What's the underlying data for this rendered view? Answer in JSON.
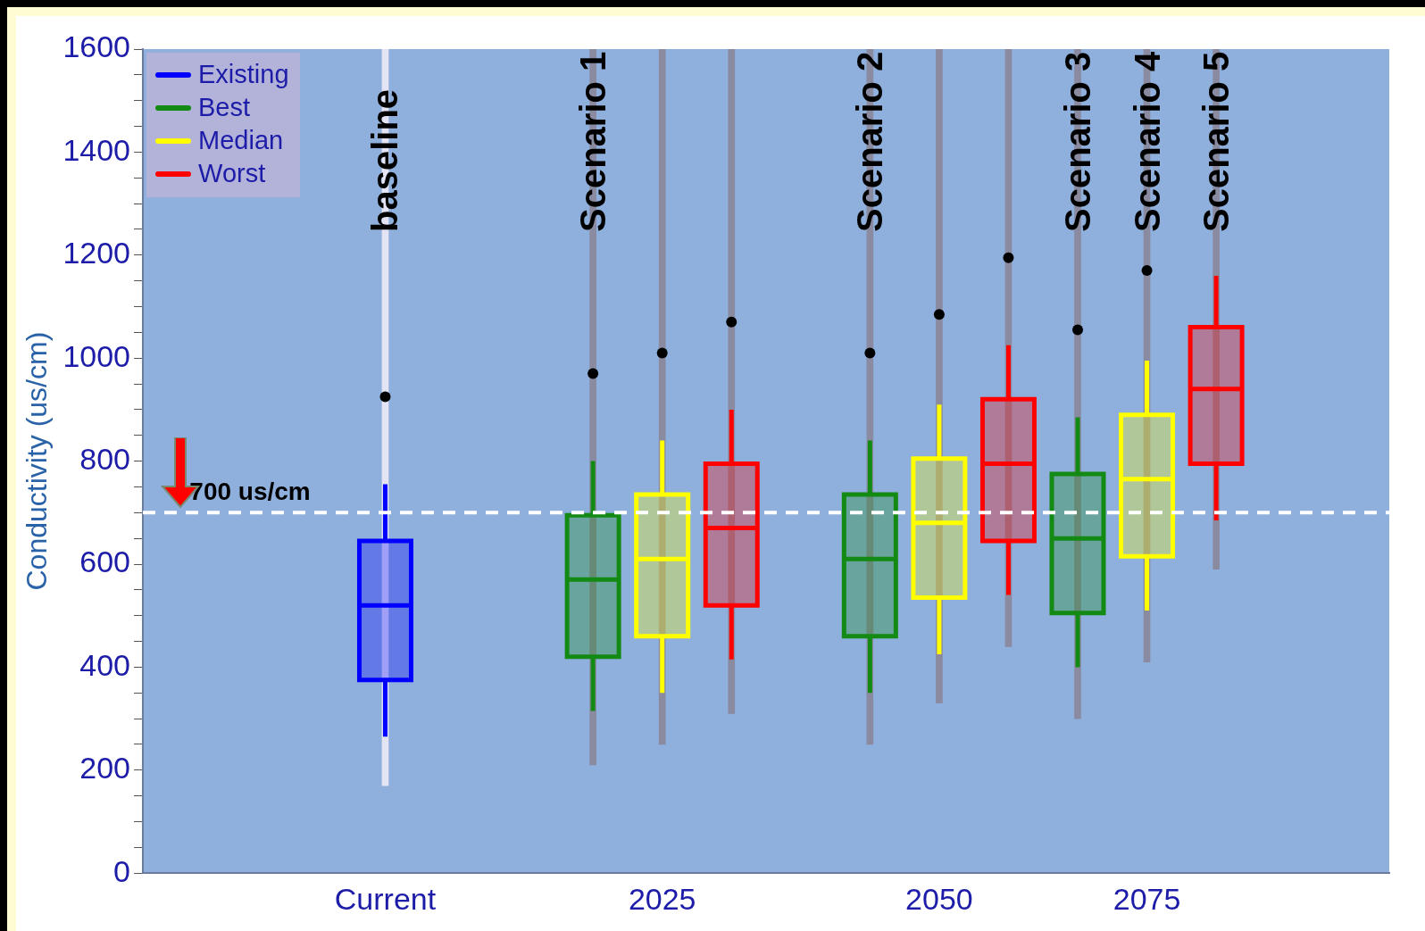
{
  "chart_data": {
    "type": "box",
    "ylabel": "Conductivity (us/cm)",
    "legend": "top left",
    "categories": [
      null,
      null,
      null,
      "Current",
      null,
      null,
      null,
      "2025",
      null,
      null,
      null,
      "2050",
      null,
      null,
      "2075",
      null,
      null,
      null
    ],
    "ylim": [
      0,
      1600
    ],
    "yticks": [
      0,
      {
        "value": 50,
        "label": null
      },
      {
        "value": 100,
        "label": null
      },
      {
        "value": 150,
        "label": null
      },
      200,
      {
        "value": 250,
        "label": null
      },
      {
        "value": 300,
        "label": null
      },
      {
        "value": 350,
        "label": null
      },
      400,
      {
        "value": 450,
        "label": null
      },
      {
        "value": 500,
        "label": null
      },
      {
        "value": 550,
        "label": null
      },
      600,
      {
        "value": 650,
        "label": null
      },
      {
        "value": 700,
        "label": null
      },
      {
        "value": 750,
        "label": null
      },
      800,
      {
        "value": 850,
        "label": null
      },
      {
        "value": 900,
        "label": null
      },
      {
        "value": 950,
        "label": null
      },
      1000,
      {
        "value": 1050,
        "label": null
      },
      {
        "value": 1100,
        "label": null
      },
      {
        "value": 1150,
        "label": null
      },
      1200,
      {
        "value": 1250,
        "label": null
      },
      {
        "value": 1300,
        "label": null
      },
      {
        "value": 1350,
        "label": null
      },
      1400,
      {
        "value": 1450,
        "label": null
      },
      {
        "value": 1500,
        "label": null
      },
      {
        "value": 1550,
        "label": null
      },
      1600
    ],
    "ref_lines": [
      {
        "axis": "y",
        "value": 700,
        "label": "700 us/cm",
        "color": "#ffffff",
        "line_style": "dashed"
      }
    ],
    "annotations": [
      "baseline",
      "Scenario 1",
      "Scenario 2",
      "Scenario 3",
      "Scenario 4",
      "Scenario 5"
    ],
    "series": [
      {
        "type": "bar",
        "base": [
          null,
          null,
          null,
          170,
          null,
          null,
          210,
          250,
          310,
          null,
          250,
          330,
          440,
          300,
          410,
          590,
          null,
          null
        ],
        "values": [
          null,
          null,
          null,
          1430,
          null,
          null,
          1390,
          1350,
          1290,
          null,
          1350,
          1270,
          1160,
          1300,
          1190,
          1010,
          null,
          null
        ],
        "colors": [
          "#8a8aa0",
          "#8a8aa0",
          "#8a8aa0",
          "#e4e4f4",
          "#8a8aa0",
          "#8a8aa0",
          "#8a8aa0",
          "#8a8aa0",
          "#8a8aa0",
          "#8a8aa0",
          "#8a8aa0",
          "#8a8aa0",
          "#8a8aa0",
          "#8a8aa0",
          "#8a8aa0",
          "#8a8aa0",
          "#8a8aa0",
          "#8a8aa0"
        ]
      },
      {
        "name": "Existing",
        "color": "#0000ff",
        "boxes": [
          null,
          null,
          null,
          {
            "low": 265,
            "q1": 375,
            "median": 520,
            "q3": 645,
            "high": 755,
            "outliers": [
              925
            ]
          },
          null,
          null,
          null,
          null,
          null,
          null,
          null,
          null,
          null,
          null,
          null,
          null,
          null,
          null
        ]
      },
      {
        "name": "Best",
        "color": "#138a13",
        "boxes": [
          null,
          null,
          null,
          null,
          null,
          null,
          {
            "low": 315,
            "q1": 420,
            "median": 570,
            "q3": 695,
            "high": 800,
            "outliers": [
              970
            ]
          },
          null,
          null,
          null,
          {
            "low": 350,
            "q1": 460,
            "median": 610,
            "q3": 735,
            "high": 840,
            "outliers": [
              1010
            ]
          },
          null,
          null,
          {
            "low": 400,
            "q1": 505,
            "median": 650,
            "q3": 775,
            "high": 885,
            "outliers": [
              1055
            ]
          },
          null,
          null,
          null,
          null
        ]
      },
      {
        "name": "Median",
        "color": "#ffff00",
        "boxes": [
          null,
          null,
          null,
          null,
          null,
          null,
          null,
          {
            "low": 350,
            "q1": 460,
            "median": 610,
            "q3": 735,
            "high": 840,
            "outliers": [
              1010
            ]
          },
          null,
          null,
          null,
          {
            "low": 425,
            "q1": 535,
            "median": 680,
            "q3": 805,
            "high": 910,
            "outliers": [
              1085
            ]
          },
          null,
          null,
          {
            "low": 510,
            "q1": 615,
            "median": 765,
            "q3": 890,
            "high": 995,
            "outliers": [
              1170
            ]
          },
          null,
          null,
          null
        ]
      },
      {
        "name": "Worst",
        "color": "#ff0000",
        "boxes": [
          null,
          null,
          null,
          null,
          null,
          null,
          null,
          null,
          {
            "low": 415,
            "q1": 520,
            "median": 670,
            "q3": 795,
            "high": 900,
            "outliers": [
              1070
            ]
          },
          null,
          null,
          null,
          {
            "low": 540,
            "q1": 645,
            "median": 795,
            "q3": 920,
            "high": 1025,
            "outliers": [
              1195
            ]
          },
          null,
          null,
          {
            "low": 685,
            "q1": 795,
            "median": 940,
            "q3": 1060,
            "high": 1160
          },
          null,
          null
        ]
      }
    ]
  }
}
